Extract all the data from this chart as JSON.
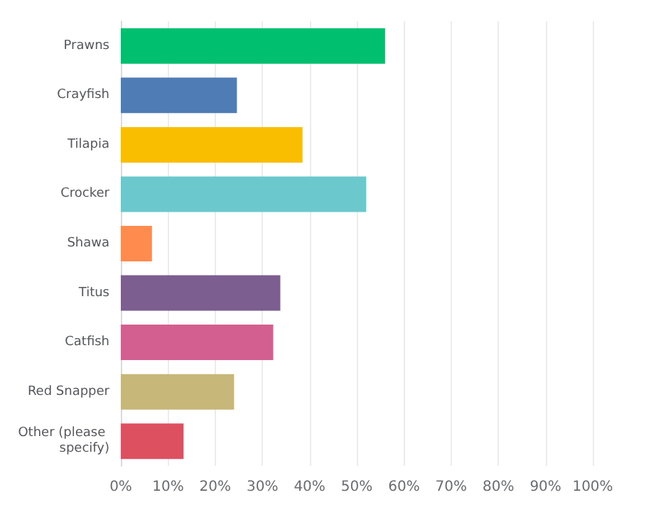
{
  "chart_data": {
    "type": "bar",
    "orientation": "horizontal",
    "categories": [
      "Prawns",
      "Crayfish",
      "Tilapia",
      "Crocker",
      "Shawa",
      "Titus",
      "Catfish",
      "Red Snapper",
      "Other (please specify)"
    ],
    "values": [
      56,
      24.6,
      38.5,
      52,
      6.6,
      33.8,
      32.3,
      24,
      13.3
    ],
    "colors": [
      "#00bf6f",
      "#507cb6",
      "#f9be00",
      "#6bc8cd",
      "#ff8b4f",
      "#7d5e90",
      "#d25f90",
      "#c7b879",
      "#dd5060"
    ],
    "xlim": [
      0,
      100
    ],
    "xticks": [
      {
        "value": 0,
        "label": "0%"
      },
      {
        "value": 10,
        "label": "10%"
      },
      {
        "value": 20,
        "label": "20%"
      },
      {
        "value": 30,
        "label": "30%"
      },
      {
        "value": 40,
        "label": "40%"
      },
      {
        "value": 50,
        "label": "50%"
      },
      {
        "value": 60,
        "label": "60%"
      },
      {
        "value": 70,
        "label": "70%"
      },
      {
        "value": 80,
        "label": "80%"
      },
      {
        "value": 90,
        "label": "90%"
      },
      {
        "value": 100,
        "label": "100%"
      }
    ],
    "grid": "x"
  }
}
